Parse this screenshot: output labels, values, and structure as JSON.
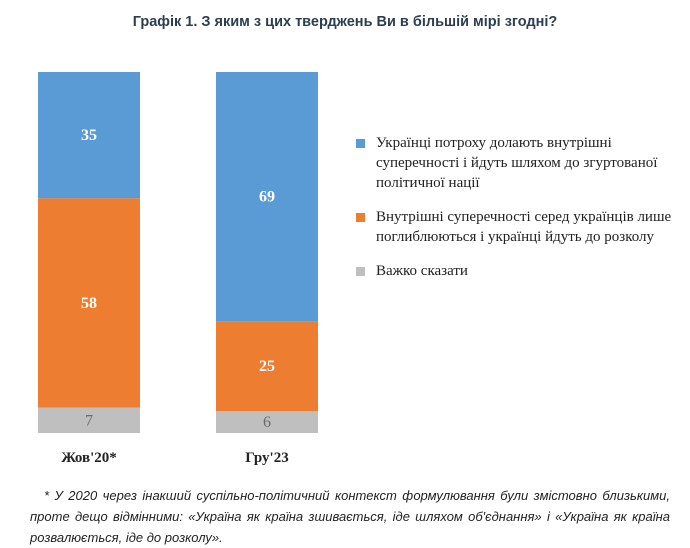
{
  "chart_data": {
    "type": "bar",
    "stacked": true,
    "title": "Графік 1. З яким з цих тверджень Ви в більшій мірі згодні?",
    "categories": [
      "Жов'20*",
      "Гру'23"
    ],
    "series": [
      {
        "name": "Українці потроху долають внутрішні суперечності і йдуть шляхом до згуртованої політичної нації",
        "values": [
          35,
          69
        ],
        "color": "#5b9bd5"
      },
      {
        "name": "Внутрішні суперечності серед українців лише поглиблюються і українці йдуть до розколу",
        "values": [
          58,
          25
        ],
        "color": "#ed7d31"
      },
      {
        "name": "Важко сказати",
        "values": [
          7,
          6
        ],
        "color": "#bfbfbf"
      }
    ],
    "ylim": [
      0,
      100
    ],
    "legend_position": "right"
  },
  "footnote": "* У 2020 через інакший суспільно-політичний контекст формулювання були змістовно близькими, проте дещо відмінними: «Україна як країна зшивається, іде шляхом об'єднання» і «Україна як країна розвалюється, іде до розколу»."
}
